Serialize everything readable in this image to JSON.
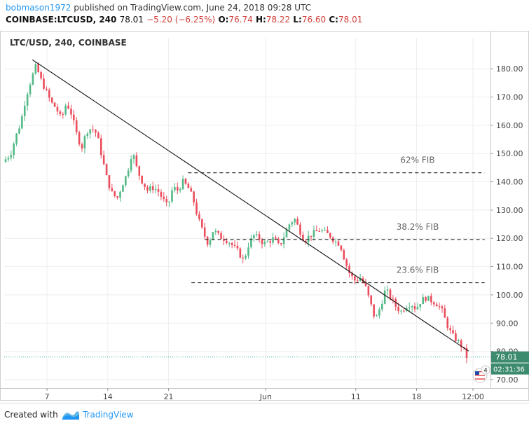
{
  "header": {
    "user": "bobmason1972",
    "published": "published on TradingView.com, June 24, 2018 09:28 UTC",
    "symbol": "COINBASE:LTCUSD, 240",
    "last": "78.01",
    "change": "−5.20 (−6.25%)",
    "o_label": "O:",
    "o_value": "76.74",
    "h_label": "H:",
    "h_value": "78.22",
    "l_label": "L:",
    "l_value": "76.60",
    "c_label": "C:",
    "c_value": "78.01"
  },
  "footer": {
    "created_with": "Created with",
    "brand": "TradingView",
    "logo_icon": "tradingview-logo-icon"
  },
  "chart_data": {
    "type": "candlestick",
    "title": "LTC/USD, 240, COINBASE",
    "x_ticks": [
      "7",
      "14",
      "21",
      "Jun",
      "11",
      "18",
      "12:00"
    ],
    "y_ticks": [
      "70.00",
      "80.00",
      "90.00",
      "100.00",
      "110.00",
      "120.00",
      "130.00",
      "140.00",
      "150.00",
      "160.00",
      "170.00",
      "180.00"
    ],
    "ylim": [
      68,
      186
    ],
    "last_price_label": "78.01",
    "countdown_label": "02:31:36",
    "colors": {
      "up": "#53b987",
      "down": "#eb4d5c",
      "fib": "#333333",
      "trend": "#111111",
      "price_line": "#26a69a"
    },
    "close_path": [
      148,
      150,
      156,
      161,
      170,
      176,
      181,
      176,
      172,
      168,
      166,
      162,
      168,
      164,
      157,
      152,
      158,
      159,
      157,
      149,
      141,
      136,
      134,
      139,
      143,
      151,
      144,
      140,
      137,
      138,
      137,
      134,
      131,
      138,
      137,
      140,
      138,
      134,
      127,
      122,
      118,
      123,
      121,
      120,
      119,
      117,
      115,
      112,
      118,
      121,
      120,
      118,
      119,
      120,
      117,
      121,
      125,
      127,
      123,
      119,
      121,
      122,
      123,
      122,
      121,
      119,
      118,
      112,
      107,
      105,
      106,
      103,
      97,
      91,
      96,
      102,
      99,
      96,
      94,
      96,
      97,
      95,
      98,
      99,
      98,
      97,
      95,
      90,
      86,
      84,
      82,
      78.01
    ],
    "annotations": [
      {
        "kind": "hline",
        "label": "62% FIB",
        "price": 143.2,
        "x_start": 0.378,
        "x_end": 0.988
      },
      {
        "kind": "hline",
        "label": "38.2% FIB",
        "price": 119.6,
        "x_start": 0.413,
        "x_end": 0.988
      },
      {
        "kind": "hline",
        "label": "23.6% FIB",
        "price": 104.3,
        "x_start": 0.385,
        "x_end": 0.988
      }
    ],
    "trendline": {
      "x_start": 0.058,
      "price_start": 183.2,
      "x_end": 0.955,
      "price_end": 80.1
    },
    "badge": {
      "icon": "us-flag-icon",
      "count": "4"
    }
  }
}
